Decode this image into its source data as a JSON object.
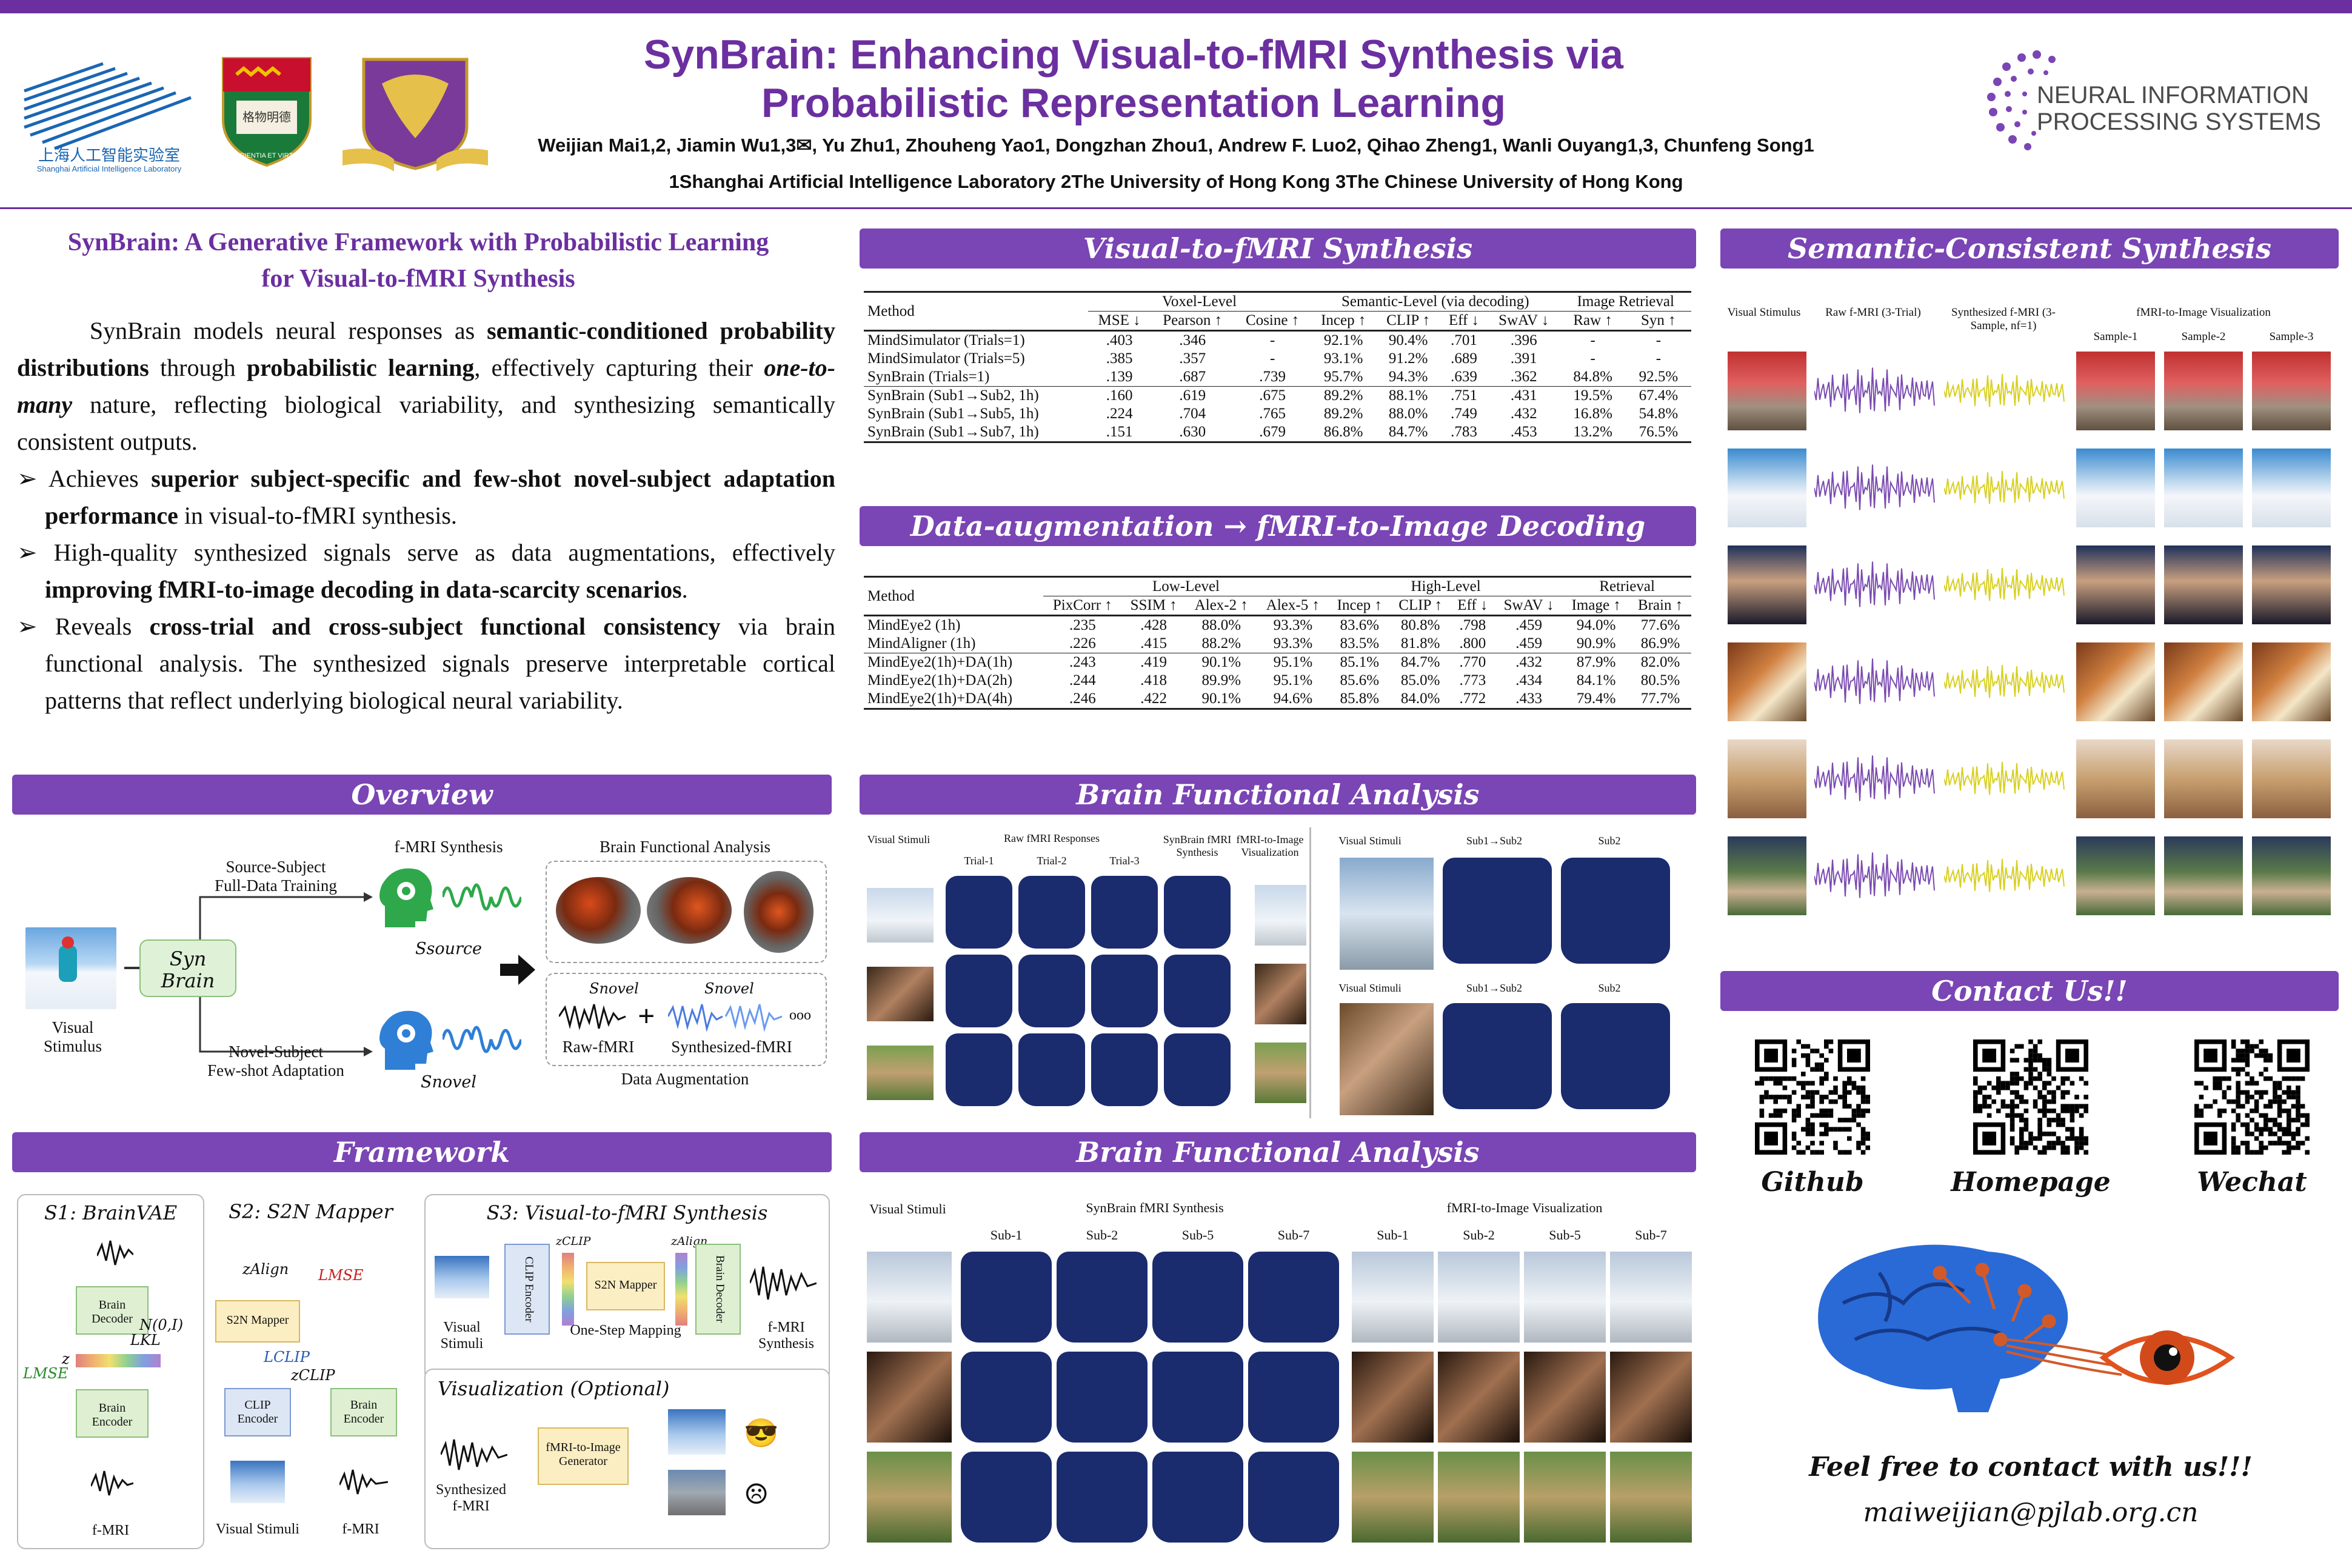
{
  "header": {
    "title_line1": "SynBrain: Enhancing Visual-to-fMRI Synthesis via",
    "title_line2": "Probabilistic Representation Learning",
    "authors": "Weijian Mai1,2, Jiamin Wu1,3✉, Yu Zhu1, Zhouheng Yao1, Dongzhan Zhou1, Andrew F. Luo2, Qihao Zheng1, Wanli Ouyang1,3, Chunfeng Song1",
    "affiliations": "1Shanghai Artificial Intelligence Laboratory    2The University of Hong Kong    3The Chinese University of Hong Kong",
    "lab_logo_cn": "上海人工智能实验室",
    "lab_logo_en": "Shanghai Artificial Intelligence Laboratory",
    "hku_motto": "SAPIENTIA ET VIRTUS",
    "conference_line1": "NEURAL INFORMATION",
    "conference_line2": "PROCESSING SYSTEMS",
    "accent_color": "#6b2fa0"
  },
  "intro": {
    "title_line1": "SynBrain: A Generative Framework with Probabilistic Learning",
    "title_line2": "for Visual-to-fMRI Synthesis",
    "p1_a": "SynBrain models neural responses as ",
    "p1_b": "semantic-conditioned probability distributions",
    "p1_c": " through ",
    "p1_d": "probabilistic learning",
    "p1_e": ", effectively capturing their ",
    "p1_f": "one-to-many",
    "p1_g": " nature, reflecting biological variability, and synthesizing semantically consistent outputs.",
    "b1_a": "Achieves ",
    "b1_b": "superior subject-specific and few-shot novel-subject adaptation performance",
    "b1_c": " in visual-to-fMRI synthesis.",
    "b2_a": "High-quality synthesized signals serve as data augmentations, effectively ",
    "b2_b": "improving fMRI-to-image decoding in data-scarcity scenarios",
    "b2_c": ".",
    "b3_a": "Reveals ",
    "b3_b": "cross-trial and cross-subject functional consistency",
    "b3_c": " via brain functional analysis. The synthesized signals preserve interpretable cortical patterns that reflect underlying biological neural variability."
  },
  "sections": {
    "overview": "Overview",
    "framework": "Framework",
    "v2f": "Visual-to-fMRI Synthesis",
    "aug": "Data-augmentation → fMRI-to-Image Decoding",
    "bfa1": "Brain Functional Analysis",
    "bfa2": "Brain Functional Analysis",
    "semantic": "Semantic-Consistent Synthesis",
    "contact": "Contact Us!!"
  },
  "overview": {
    "source_label1": "Source-Subject",
    "source_label2": "Full-Data Training",
    "novel_label1": "Novel-Subject",
    "novel_label2": "Few-shot Adaptation",
    "fmri_synth": "f-MRI Synthesis",
    "s_source": "Ssource",
    "s_novel": "Snovel",
    "synbrain1": "Syn",
    "synbrain2": "Brain",
    "visual1": "Visual",
    "visual2": "Stimulus",
    "bfa": "Brain Functional Analysis",
    "snovel_a": "Snovel",
    "snovel_b": "Snovel",
    "raw_fmri": "Raw-fMRI",
    "synth_fmri": "Synthesized-fMRI",
    "plus": "+",
    "ellipsis": "ooo",
    "data_aug": "Data Augmentation"
  },
  "framework": {
    "s1": "S1: BrainVAE",
    "s2": "S2: S2N Mapper",
    "s3": "S3: Visual-to-fMRI Synthesis",
    "brain_decoder": "Brain Decoder",
    "brain_encoder": "Brain Encoder",
    "s2n_mapper": "S2N Mapper",
    "clip_encoder": "CLIP Encoder",
    "brain_encoder2": "Brain Encoder",
    "fmri": "f-MRI",
    "fmri2": "f-MRI",
    "visual_stimuli": "Visual Stimuli",
    "l_mse": "LMSE",
    "l_mse2": "LMSE",
    "l_kl": "LKL",
    "l_clip": "LCLIP",
    "z": "z",
    "z_align": "zAlign",
    "z_clip": "zCLIP",
    "n01": "N(0,I)",
    "s3_clip": "CLIP Encoder",
    "s3_s2n": "S2N Mapper",
    "s3_dec": "Brain Decoder",
    "s3_visual": "Visual Stimuli",
    "s3_fmri": "f-MRI Synthesis",
    "one_step": "One-Step Mapping",
    "s3_zclip": "zCLIP",
    "s3_zalign": "zAlign",
    "vis_title": "Visualization (Optional)",
    "synth_fmri": "Synthesized f-MRI",
    "f2i": "fMRI-to-Image Generator"
  },
  "table1": {
    "h_method": "Method",
    "h_voxel": "Voxel-Level",
    "h_semantic": "Semantic-Level (via decoding)",
    "h_retrieval": "Image Retrieval",
    "cols": [
      "MSE ↓",
      "Pearson ↑",
      "Cosine ↑",
      "Incep ↑",
      "CLIP ↑",
      "Eff ↓",
      "SwAV ↓",
      "Raw ↑",
      "Syn ↑"
    ],
    "group1": [
      [
        "MindSimulator (Trials=1)",
        ".403",
        ".346",
        "-",
        "92.1%",
        "90.4%",
        ".701",
        ".396",
        "-",
        "-"
      ],
      [
        "MindSimulator (Trials=5)",
        ".385",
        ".357",
        "-",
        "93.1%",
        "91.2%",
        ".689",
        ".391",
        "-",
        "-"
      ],
      [
        "SynBrain (Trials=1)",
        ".139",
        ".687",
        ".739",
        "95.7%",
        "94.3%",
        ".639",
        ".362",
        "84.8%",
        "92.5%"
      ]
    ],
    "group2": [
      [
        "SynBrain (Sub1→Sub2, 1h)",
        ".160",
        ".619",
        ".675",
        "89.2%",
        "88.1%",
        ".751",
        ".431",
        "19.5%",
        "67.4%"
      ],
      [
        "SynBrain (Sub1→Sub5, 1h)",
        ".224",
        ".704",
        ".765",
        "89.2%",
        "88.0%",
        ".749",
        ".432",
        "16.8%",
        "54.8%"
      ],
      [
        "SynBrain (Sub1→Sub7, 1h)",
        ".151",
        ".630",
        ".679",
        "86.8%",
        "84.7%",
        ".783",
        ".453",
        "13.2%",
        "76.5%"
      ]
    ]
  },
  "table2": {
    "h_method": "Method",
    "h_low": "Low-Level",
    "h_high": "High-Level",
    "h_retrieval": "Retrieval",
    "cols": [
      "PixCorr ↑",
      "SSIM ↑",
      "Alex-2 ↑",
      "Alex-5 ↑",
      "Incep ↑",
      "CLIP ↑",
      "Eff ↓",
      "SwAV ↓",
      "Image ↑",
      "Brain ↑"
    ],
    "group1": [
      [
        "MindEye2 (1h)",
        ".235",
        ".428",
        "88.0%",
        "93.3%",
        "83.6%",
        "80.8%",
        ".798",
        ".459",
        "94.0%",
        "77.6%"
      ],
      [
        "MindAligner (1h)",
        ".226",
        ".415",
        "88.2%",
        "93.3%",
        "83.5%",
        "81.8%",
        ".800",
        ".459",
        "90.9%",
        "86.9%"
      ]
    ],
    "group2": [
      [
        "MindEye2(1h)+DA(1h)",
        ".243",
        ".419",
        "90.1%",
        "95.1%",
        "85.1%",
        "84.7%",
        ".770",
        ".432",
        "87.9%",
        "82.0%"
      ],
      [
        "MindEye2(1h)+DA(2h)",
        ".244",
        ".418",
        "89.9%",
        "95.1%",
        "85.6%",
        "85.0%",
        ".773",
        ".434",
        "84.1%",
        "80.5%"
      ],
      [
        "MindEye2(1h)+DA(4h)",
        ".246",
        ".422",
        "90.1%",
        "94.6%",
        "85.8%",
        "84.0%",
        ".772",
        ".433",
        "79.4%",
        "77.7%"
      ]
    ]
  },
  "bfa1": {
    "visual_stimuli": "Visual Stimuli",
    "raw_responses": "Raw fMRI Responses",
    "trial1": "Trial-1",
    "trial2": "Trial-2",
    "trial3": "Trial-3",
    "synbrain": "SynBrain fMRI Synthesis",
    "f2i": "fMRI-to-Image Visualization",
    "right_vs1": "Visual Stimuli",
    "sub1sub2_a": "Sub1→Sub2",
    "sub2_a": "Sub2",
    "right_vs2": "Visual Stimuli",
    "sub1sub2_b": "Sub1→Sub2",
    "sub2_b": "Sub2"
  },
  "bfa2": {
    "visual_stimuli": "Visual Stimuli",
    "synbrain": "SynBrain fMRI Synthesis",
    "f2i": "fMRI-to-Image Visualization",
    "subs_left": [
      "Sub-1",
      "Sub-2",
      "Sub-5",
      "Sub-7"
    ],
    "subs_right": [
      "Sub-1",
      "Sub-2",
      "Sub-5",
      "Sub-7"
    ]
  },
  "semantic": {
    "col_visual": "Visual Stimulus",
    "col_raw": "Raw f-MRI (3-Trial)",
    "col_synth": "Synthesized f-MRI (3-Sample, nf=1)",
    "col_vis": "fMRI-to-Image Visualization",
    "sample1": "Sample-1",
    "sample2": "Sample-2",
    "sample3": "Sample-3"
  },
  "contact": {
    "github": "Github",
    "homepage": "Homepage",
    "wechat": "Wechat",
    "message": "Feel free to contact with us!!!",
    "email": "maiweijian@pjlab.org.cn"
  }
}
